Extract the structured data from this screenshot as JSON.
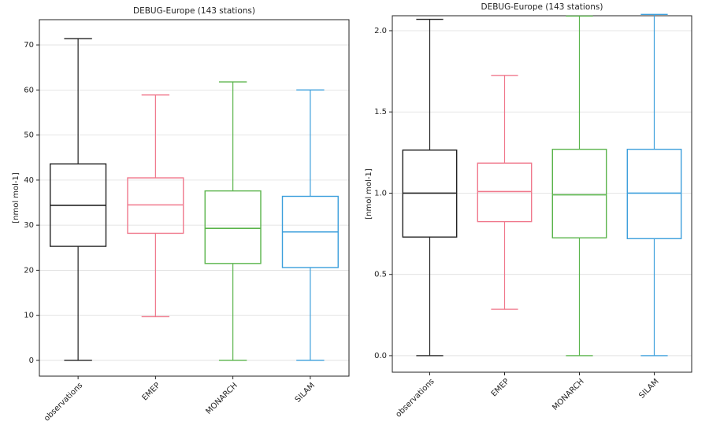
{
  "chart_data": [
    {
      "type": "box",
      "title": "DEBUG-Europe (143 stations)",
      "ylabel": "[nmol mol-1]",
      "categories": [
        "observations",
        "EMEP",
        "MONARCH",
        "SILAM"
      ],
      "colors": [
        "#222222",
        "#f0788c",
        "#5ab44b",
        "#3c9fdc"
      ],
      "low": [
        0,
        9.7,
        0,
        0
      ],
      "q1": [
        25.3,
        28.2,
        21.5,
        20.6
      ],
      "median": [
        34.4,
        34.5,
        29.3,
        28.5
      ],
      "q3": [
        43.6,
        40.5,
        37.6,
        36.4
      ],
      "high": [
        71.4,
        58.9,
        61.8,
        60
      ],
      "ylim": [
        -3.5,
        75.6
      ],
      "yticks": [
        0,
        10,
        20,
        30,
        40,
        50,
        60,
        70
      ],
      "grid": true
    },
    {
      "type": "box",
      "title": "DEBUG-Europe (143 stations)",
      "ylabel": "[nmol mol-1]",
      "categories": [
        "observations",
        "EMEP",
        "MONARCH",
        "SILAM"
      ],
      "colors": [
        "#222222",
        "#f0788c",
        "#5ab44b",
        "#3c9fdc"
      ],
      "low": [
        0,
        0.285,
        0,
        0
      ],
      "q1": [
        0.73,
        0.825,
        0.725,
        0.72
      ],
      "median": [
        1.0,
        1.01,
        0.99,
        1.0
      ],
      "q3": [
        1.265,
        1.185,
        1.27,
        1.27
      ],
      "high": [
        2.07,
        1.725,
        2.09,
        2.1
      ],
      "ylim": [
        -0.102,
        2.092
      ],
      "yticks": [
        {
          "value": 0,
          "label": "0.0"
        },
        0.5,
        {
          "value": 1,
          "label": "1.0"
        },
        1.5,
        {
          "value": 2,
          "label": "2.0"
        }
      ],
      "grid": true
    }
  ]
}
